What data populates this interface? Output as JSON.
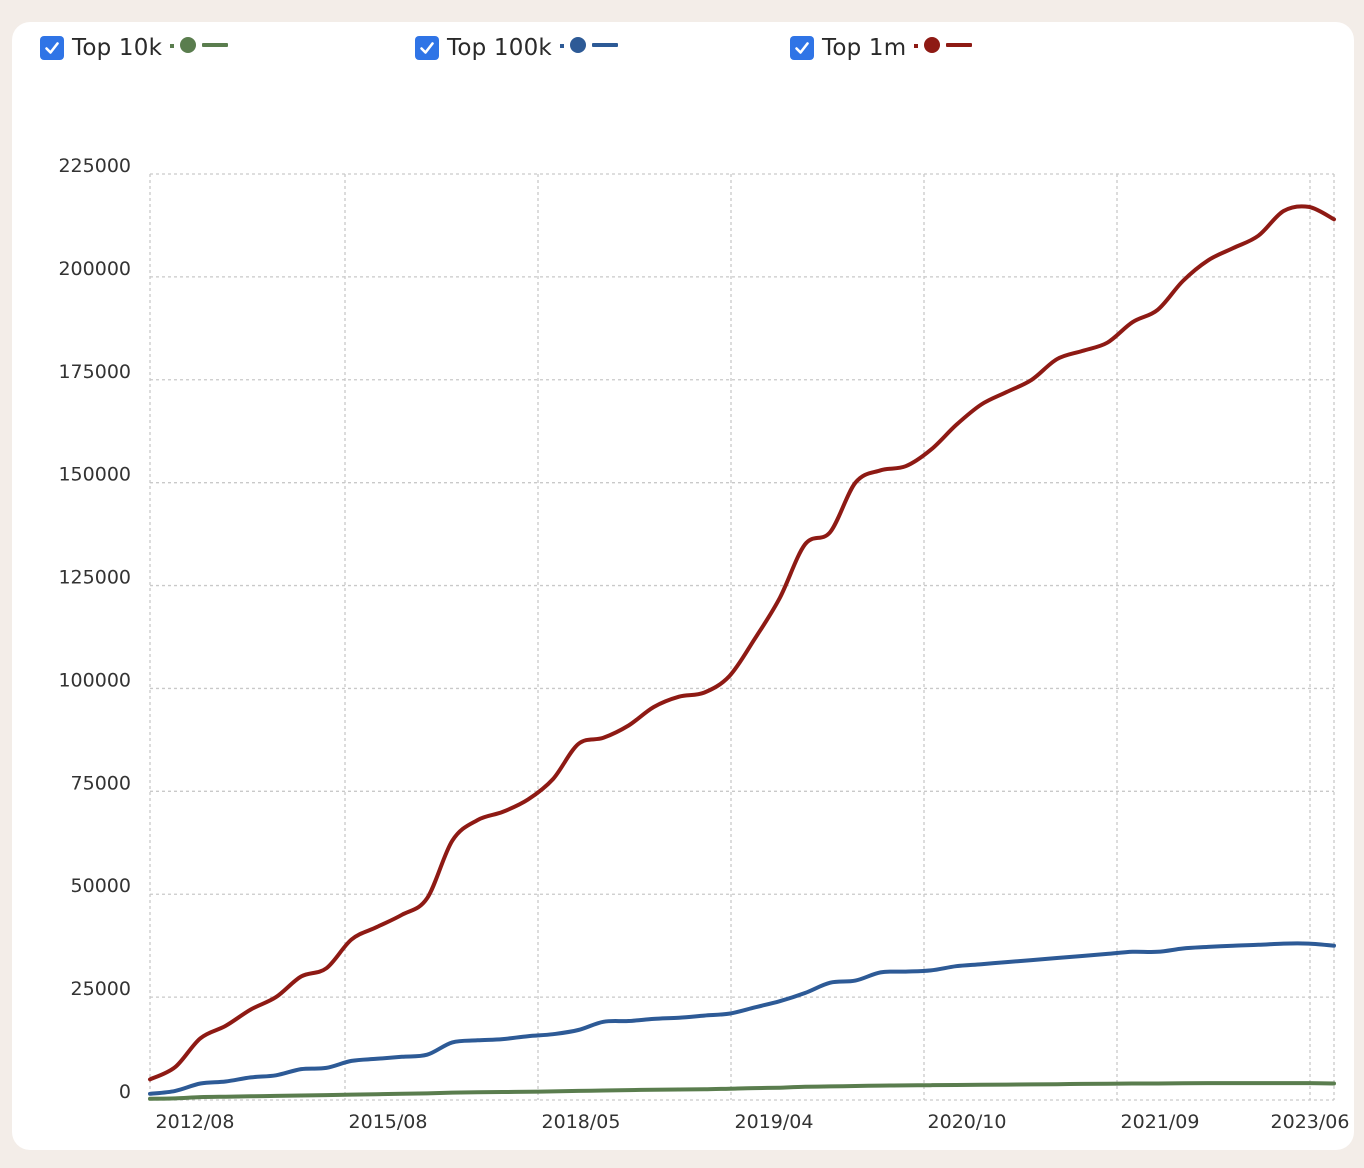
{
  "legend": [
    {
      "label": "Top 10k",
      "color": "#5a7d4e",
      "checked": true
    },
    {
      "label": "Top 100k",
      "color": "#2d5a96",
      "checked": true
    },
    {
      "label": "Top 1m",
      "color": "#8e1a14",
      "checked": true
    }
  ],
  "chart_data": {
    "type": "line",
    "title": "",
    "xlabel": "",
    "ylabel": "",
    "ylim": [
      0,
      225000
    ],
    "yticks": [
      0,
      25000,
      50000,
      75000,
      100000,
      125000,
      150000,
      175000,
      200000,
      225000
    ],
    "grid": true,
    "legend_position": "top",
    "x_tick_labels": [
      "2012/08",
      "2015/08",
      "2018/05",
      "2019/04",
      "2020/10",
      "2021/09",
      "2023/06"
    ],
    "series": [
      {
        "name": "Top 1m",
        "color": "#8e1a14",
        "values": [
          5000,
          8000,
          15000,
          18000,
          22000,
          25000,
          30000,
          32000,
          39000,
          42000,
          45000,
          49000,
          63000,
          68000,
          70000,
          73000,
          78000,
          86500,
          88000,
          91000,
          95500,
          98000,
          99000,
          103000,
          112000,
          122000,
          135000,
          138000,
          150000,
          153000,
          154000,
          158000,
          164000,
          169000,
          172000,
          175000,
          180000,
          182000,
          184000,
          189000,
          192000,
          199000,
          204000,
          207000,
          210000,
          216000,
          217000,
          214000
        ]
      },
      {
        "name": "Top 100k",
        "color": "#2d5a96",
        "values": [
          1500,
          2200,
          4000,
          4500,
          5500,
          6000,
          7500,
          7800,
          9500,
          10000,
          10500,
          11000,
          14000,
          14500,
          14800,
          15500,
          16000,
          17000,
          19000,
          19200,
          19700,
          20000,
          20500,
          21000,
          22500,
          24000,
          26000,
          28500,
          29000,
          31000,
          31200,
          31500,
          32500,
          33000,
          33500,
          34000,
          34500,
          35000,
          35500,
          36000,
          36000,
          36800,
          37200,
          37500,
          37700,
          38000,
          38000,
          37500
        ]
      },
      {
        "name": "Top 10k",
        "color": "#5a7d4e",
        "values": [
          300,
          400,
          700,
          800,
          900,
          1000,
          1100,
          1200,
          1300,
          1400,
          1500,
          1600,
          1800,
          1900,
          1950,
          2000,
          2100,
          2200,
          2300,
          2400,
          2500,
          2550,
          2600,
          2750,
          2900,
          3000,
          3200,
          3300,
          3400,
          3500,
          3550,
          3600,
          3650,
          3700,
          3750,
          3800,
          3850,
          3900,
          3950,
          4000,
          4000,
          4050,
          4100,
          4100,
          4100,
          4100,
          4100,
          4000
        ]
      }
    ]
  }
}
